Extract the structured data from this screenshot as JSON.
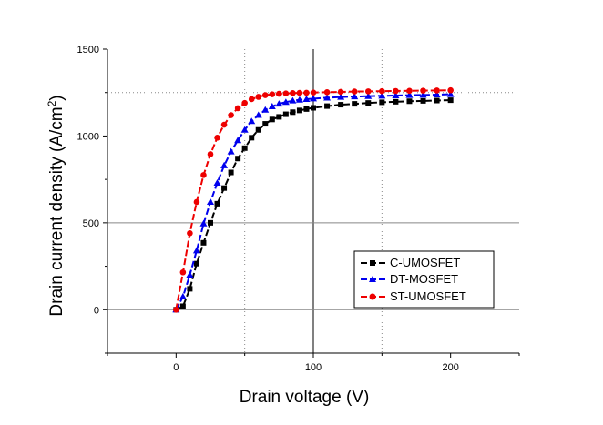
{
  "chart_data": {
    "type": "line",
    "title": "",
    "xlabel": "Drain voltage (V)",
    "ylabel_main": "Drain current density (A/cm",
    "ylabel_sup": "2",
    "ylabel_close": ")",
    "xlim": [
      -50,
      250
    ],
    "ylim": [
      -250,
      1500
    ],
    "xticks": [
      0,
      100,
      200
    ],
    "yticks": [
      0,
      500,
      1000,
      1500
    ],
    "xtick_labels": [
      "0",
      "100",
      "200"
    ],
    "ytick_labels": [
      "0",
      "500",
      "1000",
      "1500"
    ],
    "grid": "major reference lines at x=100 and y=0, y=500; dotted lines at x=50, x=150 and y=1250",
    "legend_position": "lower-right",
    "series": [
      {
        "name": "C-UMOSFET",
        "color": "#000000",
        "marker": "square",
        "x": [
          0,
          5,
          10,
          15,
          20,
          25,
          30,
          35,
          40,
          45,
          50,
          55,
          60,
          65,
          70,
          75,
          80,
          85,
          90,
          95,
          100,
          110,
          120,
          130,
          140,
          150,
          160,
          170,
          180,
          190,
          200
        ],
        "y": [
          0,
          20,
          120,
          265,
          385,
          500,
          610,
          700,
          790,
          870,
          930,
          990,
          1035,
          1070,
          1095,
          1110,
          1125,
          1137,
          1147,
          1155,
          1162,
          1172,
          1180,
          1185,
          1190,
          1194,
          1197,
          1200,
          1202,
          1204,
          1206
        ]
      },
      {
        "name": "DT-MOSFET",
        "color": "#0000ee",
        "marker": "triangle",
        "x": [
          0,
          5,
          10,
          15,
          20,
          25,
          30,
          35,
          40,
          45,
          50,
          55,
          60,
          65,
          70,
          75,
          80,
          85,
          90,
          95,
          100,
          110,
          120,
          130,
          140,
          150,
          160,
          170,
          180,
          190,
          200
        ],
        "y": [
          0,
          75,
          200,
          340,
          495,
          620,
          730,
          830,
          910,
          975,
          1035,
          1085,
          1120,
          1150,
          1170,
          1185,
          1195,
          1203,
          1208,
          1212,
          1215,
          1220,
          1224,
          1227,
          1229,
          1231,
          1233,
          1235,
          1236,
          1238,
          1240
        ]
      },
      {
        "name": "ST-UMOSFET",
        "color": "#ee0000",
        "marker": "circle",
        "x": [
          0,
          5,
          10,
          15,
          20,
          25,
          30,
          35,
          40,
          45,
          50,
          55,
          60,
          65,
          70,
          75,
          80,
          85,
          90,
          95,
          100,
          110,
          120,
          130,
          140,
          150,
          160,
          170,
          180,
          190,
          200
        ],
        "y": [
          0,
          215,
          440,
          620,
          775,
          895,
          990,
          1065,
          1120,
          1160,
          1190,
          1212,
          1225,
          1235,
          1240,
          1243,
          1245,
          1247,
          1248,
          1249,
          1250,
          1252,
          1254,
          1256,
          1257,
          1258,
          1259,
          1260,
          1261,
          1262,
          1263
        ]
      }
    ]
  }
}
